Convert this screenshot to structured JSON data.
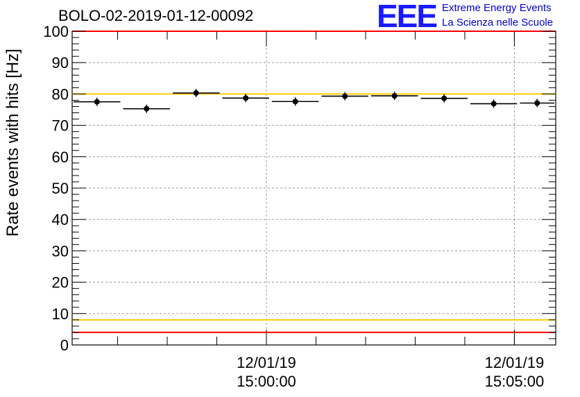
{
  "title": "BOLO-02-2019-01-12-00092",
  "logo": {
    "mark": "EEE",
    "line1": "Extreme Energy Events",
    "line2": "La Scienza nelle Scuole",
    "color": "#1a1aff"
  },
  "chart_data": {
    "type": "scatter",
    "title": "BOLO-02-2019-01-12-00092",
    "ylabel": "Rate events with hits [Hz]",
    "xlabel": "",
    "ylim": [
      0,
      100
    ],
    "yticks": [
      0,
      10,
      20,
      30,
      40,
      50,
      60,
      70,
      80,
      90,
      100
    ],
    "xlim": [
      "14:56:05",
      "15:05:50"
    ],
    "xtick_labels": [
      {
        "at": "15:00:00",
        "date": "12/01/19",
        "time": "15:00:00"
      },
      {
        "at": "15:05:00",
        "date": "12/01/19",
        "time": "15:05:00"
      }
    ],
    "grid": true,
    "series": [
      {
        "points": [
          {
            "x_start": "14:56:05",
            "x_end": "14:57:05",
            "y": 77.5
          },
          {
            "x_start": "14:57:05",
            "x_end": "14:58:05",
            "y": 75.3
          },
          {
            "x_start": "14:58:05",
            "x_end": "14:59:05",
            "y": 80.3
          },
          {
            "x_start": "14:59:05",
            "x_end": "15:00:05",
            "y": 78.7
          },
          {
            "x_start": "15:00:05",
            "x_end": "15:01:05",
            "y": 77.6
          },
          {
            "x_start": "15:01:05",
            "x_end": "15:02:05",
            "y": 79.3
          },
          {
            "x_start": "15:02:05",
            "x_end": "15:03:05",
            "y": 79.4
          },
          {
            "x_start": "15:03:05",
            "x_end": "15:04:05",
            "y": 78.6
          },
          {
            "x_start": "15:04:05",
            "x_end": "15:05:05",
            "y": 76.9
          },
          {
            "x_start": "15:05:05",
            "x_end": "15:05:50",
            "y": 77.1
          }
        ],
        "color": "#000000"
      }
    ],
    "reference_lines": [
      {
        "y": 100,
        "color": "#ff0000"
      },
      {
        "y": 80,
        "color": "#ffcc00"
      },
      {
        "y": 8,
        "color": "#ffcc00"
      },
      {
        "y": 4,
        "color": "#ff0000"
      }
    ]
  }
}
